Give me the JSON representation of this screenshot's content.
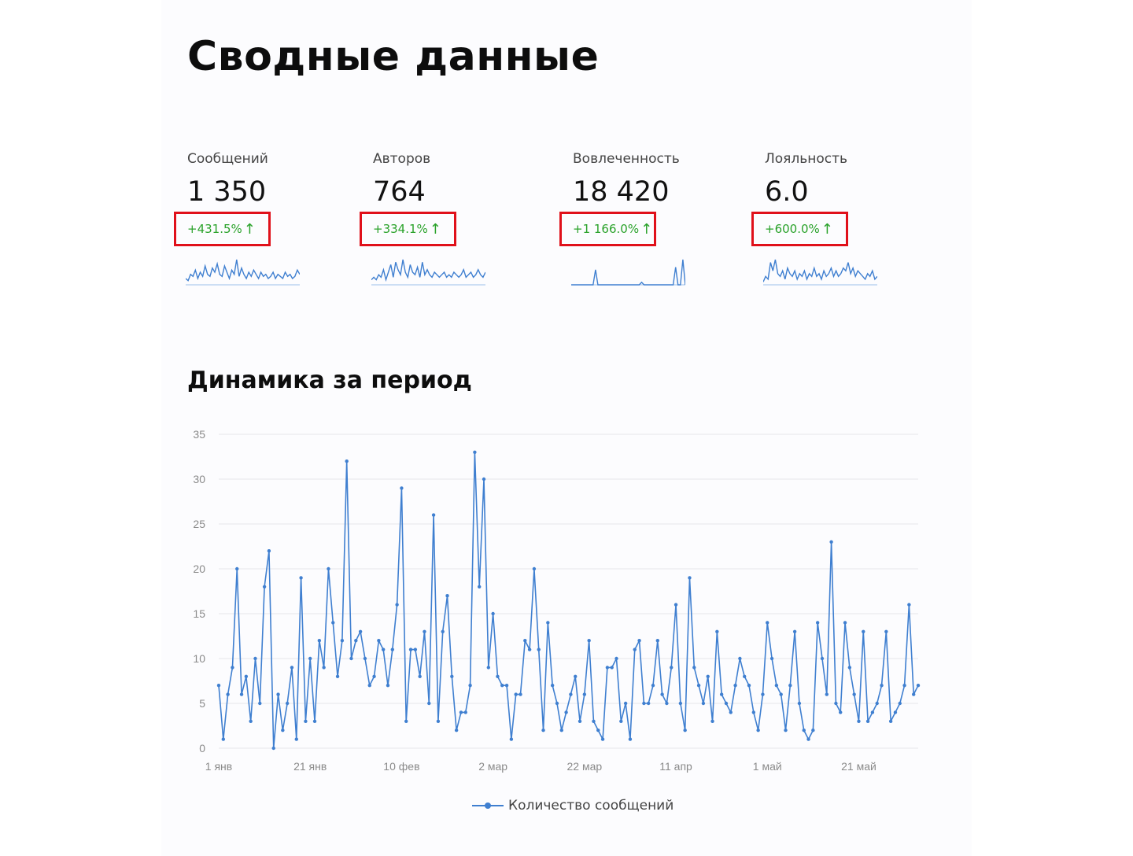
{
  "header": {
    "title": "Сводные данные"
  },
  "kpis": [
    {
      "label": "Сообщений",
      "value": "1 350",
      "delta": "+431.5%",
      "arrow": "↑",
      "spark": [
        3,
        2,
        5,
        4,
        7,
        3,
        6,
        4,
        9,
        5,
        4,
        8,
        6,
        10,
        5,
        4,
        9,
        6,
        3,
        7,
        5,
        12,
        4,
        8,
        5,
        3,
        6,
        4,
        7,
        5,
        3,
        6,
        4,
        5,
        3,
        4,
        6,
        3,
        5,
        4,
        3,
        6,
        4,
        5,
        3,
        4,
        7,
        5
      ]
    },
    {
      "label": "Авторов",
      "value": "764",
      "delta": "+334.1%",
      "arrow": "↑",
      "spark": [
        2,
        3,
        2,
        4,
        3,
        6,
        2,
        5,
        8,
        3,
        9,
        6,
        4,
        10,
        5,
        3,
        8,
        5,
        4,
        7,
        3,
        9,
        4,
        6,
        4,
        3,
        5,
        4,
        3,
        4,
        5,
        3,
        4,
        3,
        5,
        4,
        3,
        4,
        6,
        3,
        4,
        5,
        3,
        4,
        6,
        4,
        3,
        5
      ]
    },
    {
      "label": "Вовлеченность",
      "value": "18 420",
      "delta": "+1 166.0%",
      "arrow": "↑",
      "spark": [
        0,
        0,
        0,
        0,
        0,
        0,
        0,
        0,
        0,
        0,
        6,
        0,
        0,
        0,
        0,
        0,
        0,
        0,
        0,
        0,
        0,
        0,
        0,
        0,
        0,
        0,
        0,
        0,
        0,
        1,
        0,
        0,
        0,
        0,
        0,
        0,
        0,
        0,
        0,
        0,
        0,
        0,
        0,
        7,
        0,
        0,
        10,
        0
      ]
    },
    {
      "label": "Лояльность",
      "value": "6.0",
      "delta": "+600.0%",
      "arrow": "↑",
      "spark": [
        1,
        3,
        2,
        8,
        5,
        9,
        4,
        3,
        5,
        2,
        6,
        4,
        3,
        5,
        2,
        4,
        3,
        5,
        2,
        4,
        3,
        6,
        3,
        4,
        2,
        5,
        3,
        4,
        6,
        3,
        5,
        3,
        4,
        6,
        5,
        8,
        4,
        6,
        3,
        5,
        4,
        3,
        2,
        4,
        3,
        5,
        2,
        3
      ]
    }
  ],
  "section": {
    "title": "Динамика за период"
  },
  "chart_data": {
    "type": "line",
    "title": "Динамика за период",
    "xlabel": "",
    "ylabel": "",
    "ylim": [
      0,
      35
    ],
    "y_ticks": [
      0,
      5,
      10,
      15,
      20,
      25,
      30,
      35
    ],
    "x_ticks": [
      "1 янв",
      "21 янв",
      "10 фев",
      "2 мар",
      "22 мар",
      "11 апр",
      "1 май",
      "21 май"
    ],
    "grid": true,
    "legend_position": "bottom",
    "series": [
      {
        "name": "Количество сообщений",
        "color": "#3f7fd0",
        "x_start": "1 янв",
        "step": "1 день",
        "values": [
          7,
          1,
          6,
          9,
          20,
          6,
          8,
          3,
          10,
          5,
          18,
          22,
          0,
          6,
          2,
          5,
          9,
          1,
          19,
          3,
          10,
          3,
          12,
          9,
          20,
          14,
          8,
          12,
          32,
          10,
          12,
          13,
          10,
          7,
          8,
          12,
          11,
          7,
          11,
          16,
          29,
          3,
          11,
          11,
          8,
          13,
          5,
          26,
          3,
          13,
          17,
          8,
          2,
          4,
          4,
          7,
          33,
          18,
          30,
          9,
          15,
          8,
          7,
          7,
          1,
          6,
          6,
          12,
          11,
          20,
          11,
          2,
          14,
          7,
          5,
          2,
          4,
          6,
          8,
          3,
          6,
          12,
          3,
          2,
          1,
          9,
          9,
          10,
          3,
          5,
          1,
          11,
          12,
          5,
          5,
          7,
          12,
          6,
          5,
          9,
          16,
          5,
          2,
          19,
          9,
          7,
          5,
          8,
          3,
          13,
          6,
          5,
          4,
          7,
          10,
          8,
          7,
          4,
          2,
          6,
          14,
          10,
          7,
          6,
          2,
          7,
          13,
          5,
          2,
          1,
          2,
          14,
          10,
          6,
          23,
          5,
          4,
          14,
          9,
          6,
          3,
          13,
          3,
          4,
          5,
          7,
          13,
          3,
          4,
          5,
          7,
          16,
          6,
          7
        ]
      }
    ]
  },
  "legend": {
    "label": "Количество сообщений"
  }
}
